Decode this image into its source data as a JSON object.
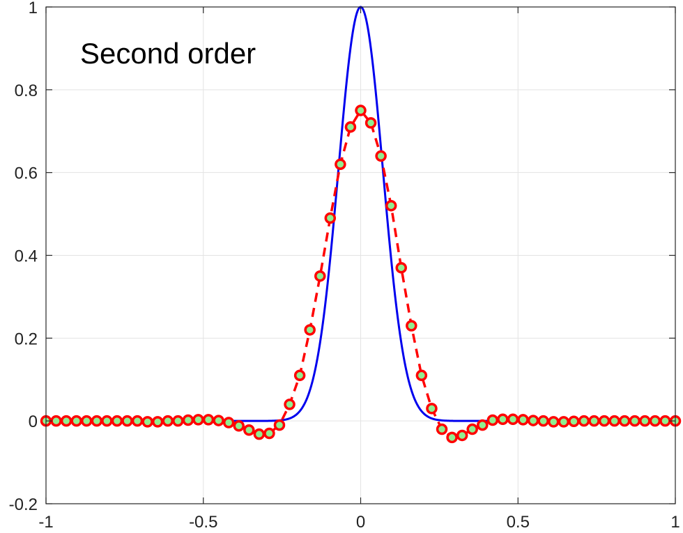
{
  "chart_data": {
    "type": "line",
    "title": "",
    "xlabel": "",
    "ylabel": "",
    "xlim": [
      -1,
      1
    ],
    "ylim": [
      -0.2,
      1
    ],
    "grid": true,
    "x_ticks": [
      -1,
      -0.5,
      0,
      0.5,
      1
    ],
    "x_tick_labels": [
      "-1",
      "-0.5",
      "0",
      "0.5",
      "1"
    ],
    "y_ticks": [
      -0.2,
      0,
      0.2,
      0.4,
      0.6,
      0.8,
      1
    ],
    "y_tick_labels": [
      "-0.2",
      "0",
      "0.2",
      "0.4",
      "0.6",
      "0.8",
      "1"
    ],
    "annotation": "Second order",
    "exact_curve": {
      "style": "solid",
      "color": "#0000ee",
      "function": "exp(-x^2/0.01)"
    },
    "numerical": {
      "style": "dashed",
      "line_color": "#ff0000",
      "marker": "circle",
      "marker_edge_color": "#ff0000",
      "marker_face_color": "#90ee90",
      "x": [
        -1,
        -0.9677,
        -0.9355,
        -0.9032,
        -0.871,
        -0.8387,
        -0.8065,
        -0.7742,
        -0.7419,
        -0.7097,
        -0.6774,
        -0.6452,
        -0.6129,
        -0.5806,
        -0.5484,
        -0.5161,
        -0.4839,
        -0.4516,
        -0.4194,
        -0.3871,
        -0.3548,
        -0.3226,
        -0.2903,
        -0.2581,
        -0.2258,
        -0.1935,
        -0.1613,
        -0.129,
        -0.0968,
        -0.0645,
        -0.0323,
        0,
        0.0323,
        0.0645,
        0.0968,
        0.129,
        0.1613,
        0.1935,
        0.2258,
        0.2581,
        0.2903,
        0.3226,
        0.3548,
        0.3871,
        0.4194,
        0.4516,
        0.4839,
        0.5161,
        0.5484,
        0.5806,
        0.6129,
        0.6452,
        0.6774,
        0.7097,
        0.7419,
        0.7742,
        0.8065,
        0.8387,
        0.871,
        0.9032,
        0.9355,
        0.9677,
        1
      ],
      "y": [
        0,
        0,
        0,
        0,
        0,
        0,
        0,
        0,
        0,
        0,
        -0.002,
        -0.002,
        0,
        0,
        0.002,
        0.003,
        0.003,
        0.001,
        -0.004,
        -0.012,
        -0.022,
        -0.032,
        -0.03,
        -0.01,
        0.04,
        0.11,
        0.22,
        0.35,
        0.49,
        0.62,
        0.71,
        0.75,
        0.72,
        0.64,
        0.52,
        0.37,
        0.23,
        0.11,
        0.03,
        -0.02,
        -0.04,
        -0.035,
        -0.02,
        -0.01,
        0.002,
        0.004,
        0.004,
        0.003,
        0.001,
        0,
        -0.002,
        -0.002,
        -0.001,
        0,
        0,
        0,
        0,
        0,
        0,
        0,
        0,
        0,
        0
      ]
    }
  }
}
